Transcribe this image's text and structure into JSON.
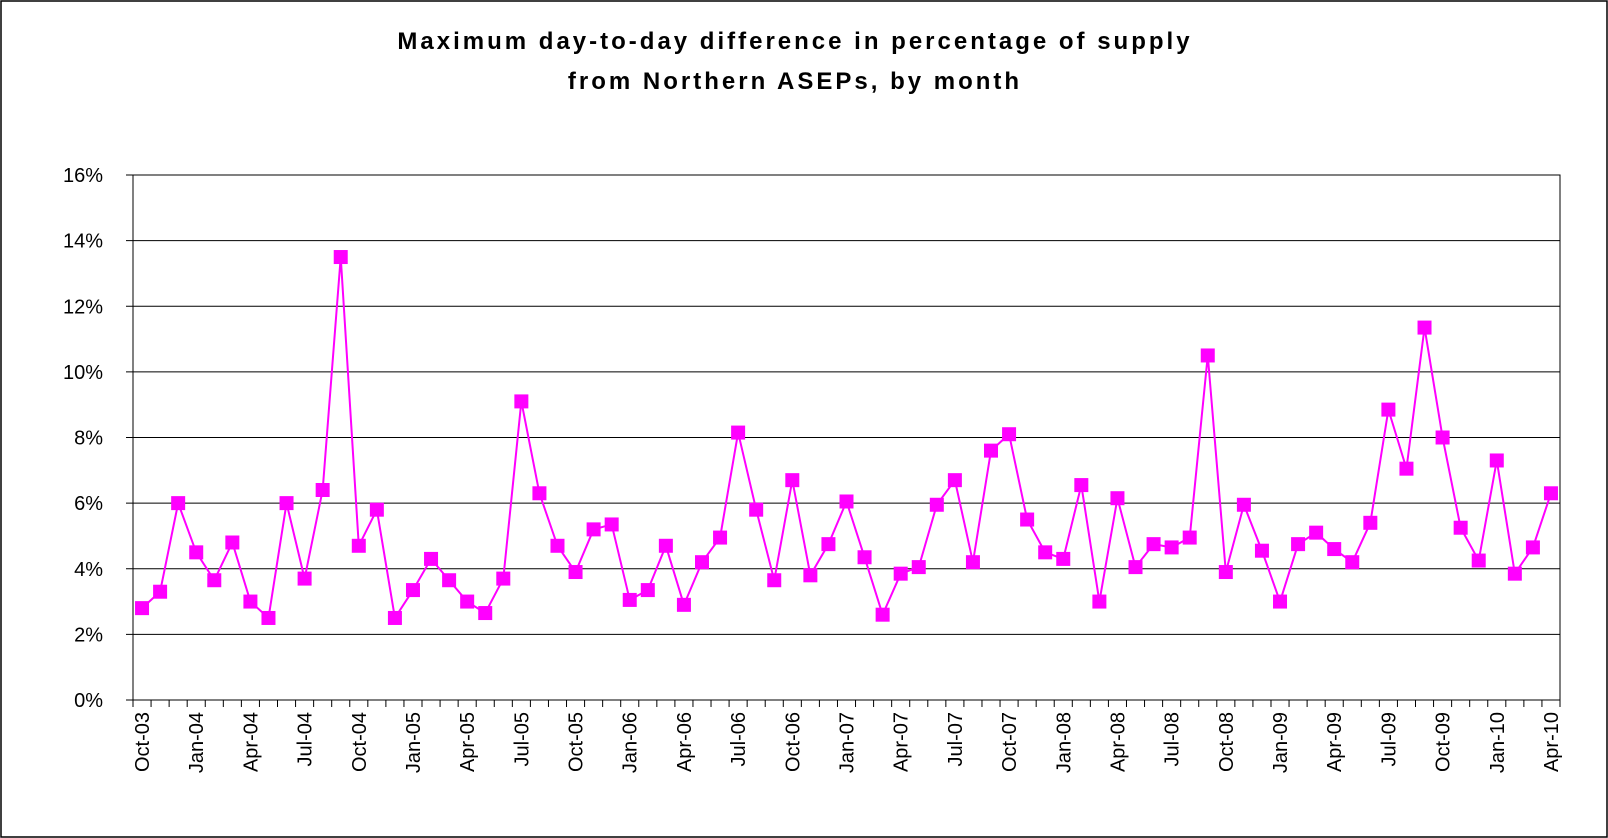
{
  "chart_data": {
    "type": "line",
    "title": [
      "Maximum day-to-day difference in percentage of supply",
      "from Northern ASEPs, by month"
    ],
    "categories": [
      "Oct-03",
      null,
      null,
      "Jan-04",
      null,
      null,
      "Apr-04",
      null,
      null,
      "Jul-04",
      null,
      null,
      "Oct-04",
      null,
      null,
      "Jan-05",
      null,
      null,
      "Apr-05",
      null,
      null,
      "Jul-05",
      null,
      null,
      "Oct-05",
      null,
      null,
      "Jan-06",
      null,
      null,
      "Apr-06",
      null,
      null,
      "Jul-06",
      null,
      null,
      "Oct-06",
      null,
      null,
      "Jan-07",
      null,
      null,
      "Apr-07",
      null,
      null,
      "Jul-07",
      null,
      null,
      "Oct-07",
      null,
      null,
      "Jan-08",
      null,
      null,
      "Apr-08",
      null,
      null,
      "Jul-08",
      null,
      null,
      "Oct-08",
      null,
      null,
      "Jan-09",
      null,
      null,
      "Apr-09",
      null,
      null,
      "Jul-09",
      null,
      null,
      "Oct-09",
      null,
      null,
      "Jan-10",
      null,
      null,
      "Apr-10"
    ],
    "series": [
      {
        "color": "#ff00ff",
        "values": [
          2.8,
          3.3,
          6.0,
          4.5,
          3.65,
          4.8,
          3.0,
          2.5,
          6.0,
          3.7,
          6.4,
          13.5,
          4.7,
          5.8,
          2.5,
          3.35,
          4.3,
          3.65,
          3.0,
          2.65,
          3.7,
          9.1,
          6.3,
          4.7,
          3.9,
          5.2,
          5.35,
          3.05,
          3.35,
          4.7,
          2.9,
          4.2,
          4.95,
          8.15,
          5.8,
          3.65,
          6.7,
          3.8,
          4.75,
          6.05,
          4.35,
          2.6,
          3.85,
          4.05,
          5.95,
          6.7,
          4.2,
          7.6,
          8.1,
          5.5,
          4.5,
          4.3,
          6.55,
          3.0,
          6.15,
          4.05,
          4.75,
          4.65,
          4.95,
          10.5,
          3.9,
          5.95,
          4.55,
          3.0,
          4.75,
          5.1,
          4.6,
          4.2,
          5.4,
          8.85,
          7.05,
          11.35,
          8.0,
          5.25,
          4.25,
          7.3,
          3.85,
          4.65,
          6.3
        ]
      }
    ],
    "ylim": [
      0,
      16
    ],
    "yticks": [
      {
        "value": 0,
        "label": "0%"
      },
      {
        "value": 2,
        "label": "2%"
      },
      {
        "value": 4,
        "label": "4%"
      },
      {
        "value": 6,
        "label": "6%"
      },
      {
        "value": 8,
        "label": "8%"
      },
      {
        "value": 10,
        "label": "10%"
      },
      {
        "value": 12,
        "label": "12%"
      },
      {
        "value": 14,
        "label": "14%"
      },
      {
        "value": 16,
        "label": "16%"
      }
    ],
    "grid": true
  }
}
